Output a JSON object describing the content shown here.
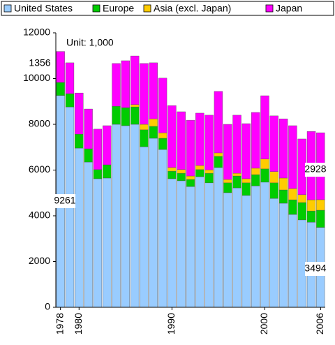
{
  "chart_data": {
    "type": "stacked-bar",
    "annotation": "Unit: 1,000",
    "categories": [
      "1978",
      null,
      "1980",
      null,
      null,
      null,
      null,
      null,
      null,
      null,
      null,
      null,
      "1990",
      null,
      null,
      null,
      null,
      null,
      null,
      null,
      null,
      null,
      "2000",
      null,
      null,
      null,
      null,
      null,
      "2006"
    ],
    "series": [
      {
        "name": "United States",
        "color": "#99ccff",
        "values": [
          9261,
          8760,
          6960,
          6350,
          5620,
          5650,
          8000,
          7940,
          8000,
          7020,
          7390,
          6900,
          5620,
          5530,
          5280,
          5710,
          5440,
          6110,
          5010,
          5220,
          4890,
          5310,
          5470,
          4760,
          4550,
          4060,
          3820,
          3720,
          3494
        ]
      },
      {
        "name": "Europe",
        "color": "#00cc00",
        "values": [
          570,
          580,
          610,
          580,
          400,
          580,
          790,
          790,
          760,
          740,
          520,
          490,
          330,
          330,
          310,
          310,
          420,
          490,
          430,
          520,
          550,
          490,
          580,
          680,
          580,
          640,
          760,
          490,
          750
        ]
      },
      {
        "name": "Asia (excl. Japan)",
        "color": "#ffcc00",
        "values": [
          0,
          0,
          0,
          0,
          0,
          0,
          0,
          0,
          100,
          240,
          330,
          240,
          160,
          160,
          150,
          180,
          150,
          150,
          150,
          120,
          180,
          280,
          430,
          490,
          520,
          490,
          340,
          490,
          460
        ]
      },
      {
        "name": "Japan",
        "color": "#ff00ff",
        "values": [
          1356,
          1350,
          1800,
          1740,
          1770,
          1710,
          1870,
          2050,
          2130,
          2660,
          2450,
          2390,
          2710,
          2530,
          2440,
          2290,
          2390,
          2690,
          2410,
          2540,
          2410,
          2440,
          2770,
          2440,
          2590,
          2750,
          2440,
          2990,
          2928
        ]
      }
    ],
    "ylim": [
      0,
      12000
    ],
    "yticks": [
      0,
      2000,
      4000,
      6000,
      8000,
      10000,
      12000
    ],
    "grid": false
  }
}
